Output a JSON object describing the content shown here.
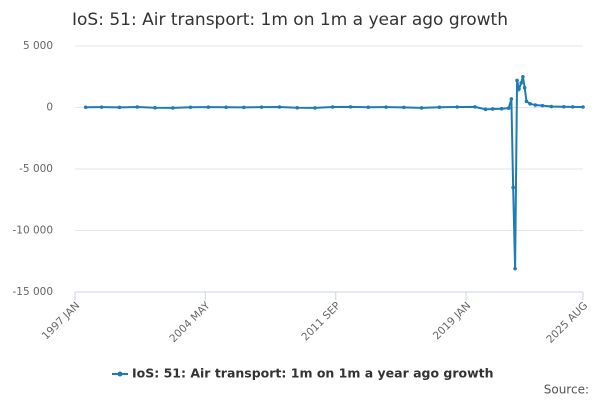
{
  "chart_data": {
    "type": "line",
    "title": "IoS: 51: Air transport: 1m on 1m a year ago growth",
    "source": "Source:",
    "x": [
      1997.6,
      1998.5,
      1999.5,
      2000.5,
      2001.5,
      2002.5,
      2003.5,
      2004.5,
      2005.5,
      2006.5,
      2007.5,
      2008.5,
      2009.5,
      2010.5,
      2011.5,
      2012.5,
      2013.5,
      2014.5,
      2015.5,
      2016.5,
      2017.5,
      2018.5,
      2019.5,
      2020.1,
      2020.5,
      2021.0,
      2021.4,
      2021.55,
      2021.65,
      2021.76,
      2021.87,
      2021.98,
      2022.1,
      2022.2,
      2022.3,
      2022.4,
      2022.6,
      2022.9,
      2023.3,
      2023.8,
      2024.5,
      2025.0,
      2025.58
    ],
    "series": [
      {
        "name": "IoS: 51: Air transport: 1m on 1m a year ago growth",
        "color": "#1f7bb6",
        "values": [
          20,
          30,
          10,
          40,
          -20,
          -30,
          20,
          30,
          20,
          10,
          30,
          40,
          -20,
          -30,
          40,
          50,
          20,
          30,
          10,
          -30,
          20,
          40,
          50,
          -150,
          -120,
          -100,
          -50,
          700,
          -6500,
          -13100,
          2200,
          1500,
          2000,
          2500,
          1600,
          500,
          300,
          200,
          150,
          80,
          60,
          50,
          40
        ]
      }
    ],
    "xlim": [
      1997.0,
      2025.58
    ],
    "xticks": [
      {
        "value": 1997.0,
        "label": "1997 JAN"
      },
      {
        "value": 2004.33,
        "label": "2004 MAY"
      },
      {
        "value": 2011.67,
        "label": "2011 SEP"
      },
      {
        "value": 2019.0,
        "label": "2019 JAN"
      },
      {
        "value": 2025.58,
        "label": "2025 AUG"
      }
    ],
    "ylim": [
      -15000,
      5000
    ],
    "yticks": [
      {
        "value": 5000,
        "label": "5 000"
      },
      0,
      {
        "value": -5000,
        "label": "-5 000"
      },
      {
        "value": -10000,
        "label": "-10 000"
      },
      {
        "value": -15000,
        "label": "-15 000"
      }
    ],
    "grid": true
  }
}
